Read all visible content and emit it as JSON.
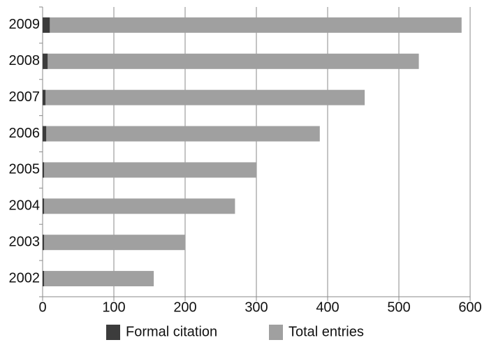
{
  "chart_data": {
    "type": "bar",
    "orientation": "horizontal",
    "categories": [
      "2009",
      "2008",
      "2007",
      "2006",
      "2005",
      "2004",
      "2003",
      "2002"
    ],
    "series": [
      {
        "name": "Total entries",
        "color": "#a0a0a0",
        "values": [
          588,
          528,
          452,
          389,
          300,
          270,
          200,
          156
        ]
      },
      {
        "name": "Formal citation",
        "color": "#3c3c3c",
        "values": [
          10,
          7,
          4,
          5,
          2,
          2,
          2,
          2
        ]
      }
    ],
    "xlim": [
      0,
      600
    ],
    "xticks": [
      0,
      100,
      200,
      300,
      400,
      500,
      600
    ],
    "grid": true
  }
}
